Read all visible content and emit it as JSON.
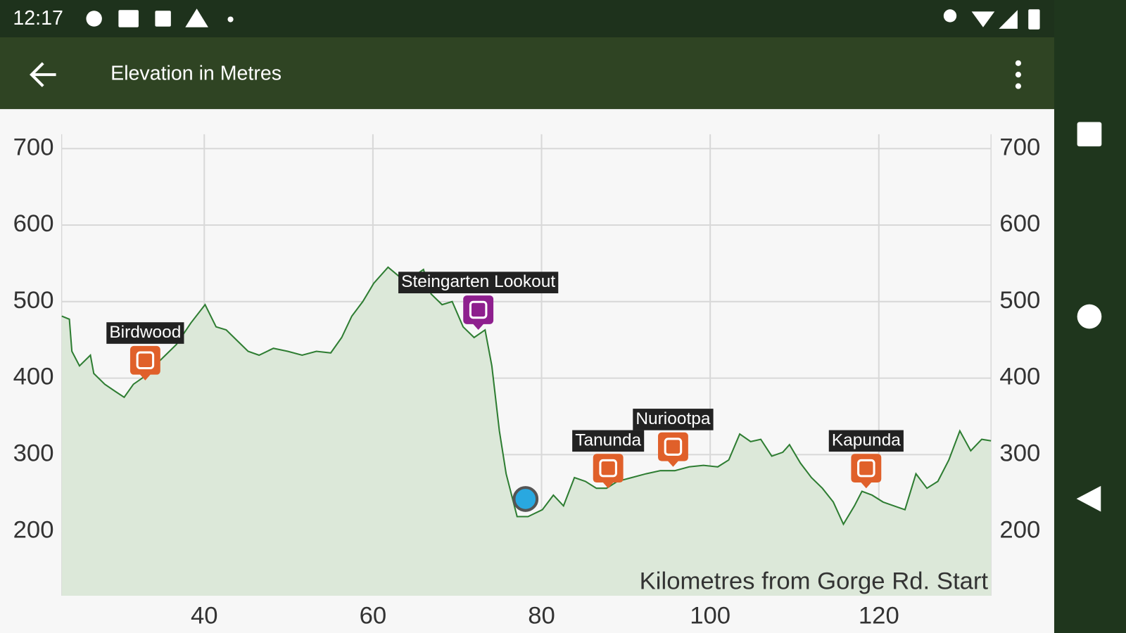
{
  "status_bar": {
    "time": "12:17"
  },
  "app_bar": {
    "title": "Elevation in Metres"
  },
  "chart_data": {
    "type": "area",
    "x_label": "Kilometres from Gorge Rd. Start",
    "x": [
      23.1,
      24.0,
      24.3,
      25.2,
      26.5,
      26.9,
      28.2,
      29.4,
      30.5,
      31.6,
      32.9,
      34.1,
      35.4,
      36.7,
      38.4,
      40.1,
      41.4,
      42.6,
      43.9,
      45.2,
      46.5,
      48.2,
      49.9,
      51.6,
      53.3,
      55.0,
      56.3,
      57.5,
      58.8,
      60.1,
      61.8,
      63.1,
      64.8,
      66.0,
      66.9,
      68.2,
      69.4,
      70.7,
      72.0,
      73.3,
      74.1,
      75.0,
      75.8,
      77.1,
      78.4,
      80.1,
      81.4,
      82.6,
      83.9,
      85.2,
      86.5,
      87.7,
      89.0,
      90.7,
      92.4,
      94.1,
      95.8,
      97.5,
      99.2,
      100.9,
      102.2,
      103.5,
      104.8,
      106.0,
      107.3,
      108.6,
      109.4,
      110.7,
      112.0,
      113.3,
      114.6,
      115.8,
      117.1,
      118.0,
      119.2,
      120.5,
      121.8,
      123.1,
      124.4,
      125.7,
      127.0,
      128.3,
      129.6,
      130.9,
      132.2,
      133.3
    ],
    "values": [
      481,
      477,
      435,
      416,
      430,
      406,
      392,
      383,
      375,
      392,
      402,
      416,
      430,
      444,
      472,
      496,
      467,
      463,
      449,
      435,
      430,
      439,
      435,
      430,
      435,
      433,
      453,
      481,
      500,
      524,
      545,
      533,
      533,
      542,
      510,
      496,
      500,
      467,
      453,
      463,
      416,
      331,
      275,
      219,
      219,
      228,
      247,
      233,
      270,
      265,
      256,
      256,
      265,
      270,
      275,
      279,
      279,
      284,
      286,
      284,
      293,
      327,
      317,
      320,
      298,
      303,
      313,
      289,
      270,
      256,
      238,
      209,
      233,
      252,
      247,
      238,
      233,
      228,
      275,
      256,
      265,
      293,
      331,
      305,
      320,
      318
    ],
    "color": "#2e7d32",
    "fill_color": "#dce8d9",
    "xlim": [
      23.1,
      133.3
    ],
    "ylim": [
      115.6,
      718.8
    ],
    "xticks": [
      40,
      60,
      80,
      100,
      120
    ],
    "yticks": [
      200,
      300,
      400,
      500,
      600,
      700
    ],
    "grid": true,
    "pois": [
      {
        "name": "Birdwood",
        "x": 33.0,
        "y": 397,
        "color": "#e0602a"
      },
      {
        "name": "Steingarten Lookout",
        "x": 72.5,
        "y": 463,
        "color": "#8e1f8e"
      },
      {
        "name": "Tanunda",
        "x": 87.9,
        "y": 256,
        "color": "#e0602a"
      },
      {
        "name": "Nuriootpa",
        "x": 95.6,
        "y": 284,
        "color": "#e0602a"
      },
      {
        "name": "Kapunda",
        "x": 118.5,
        "y": 256,
        "color": "#e0602a"
      }
    ],
    "position": {
      "x": 78.1,
      "y": 242,
      "color": "#29a8e0"
    }
  }
}
